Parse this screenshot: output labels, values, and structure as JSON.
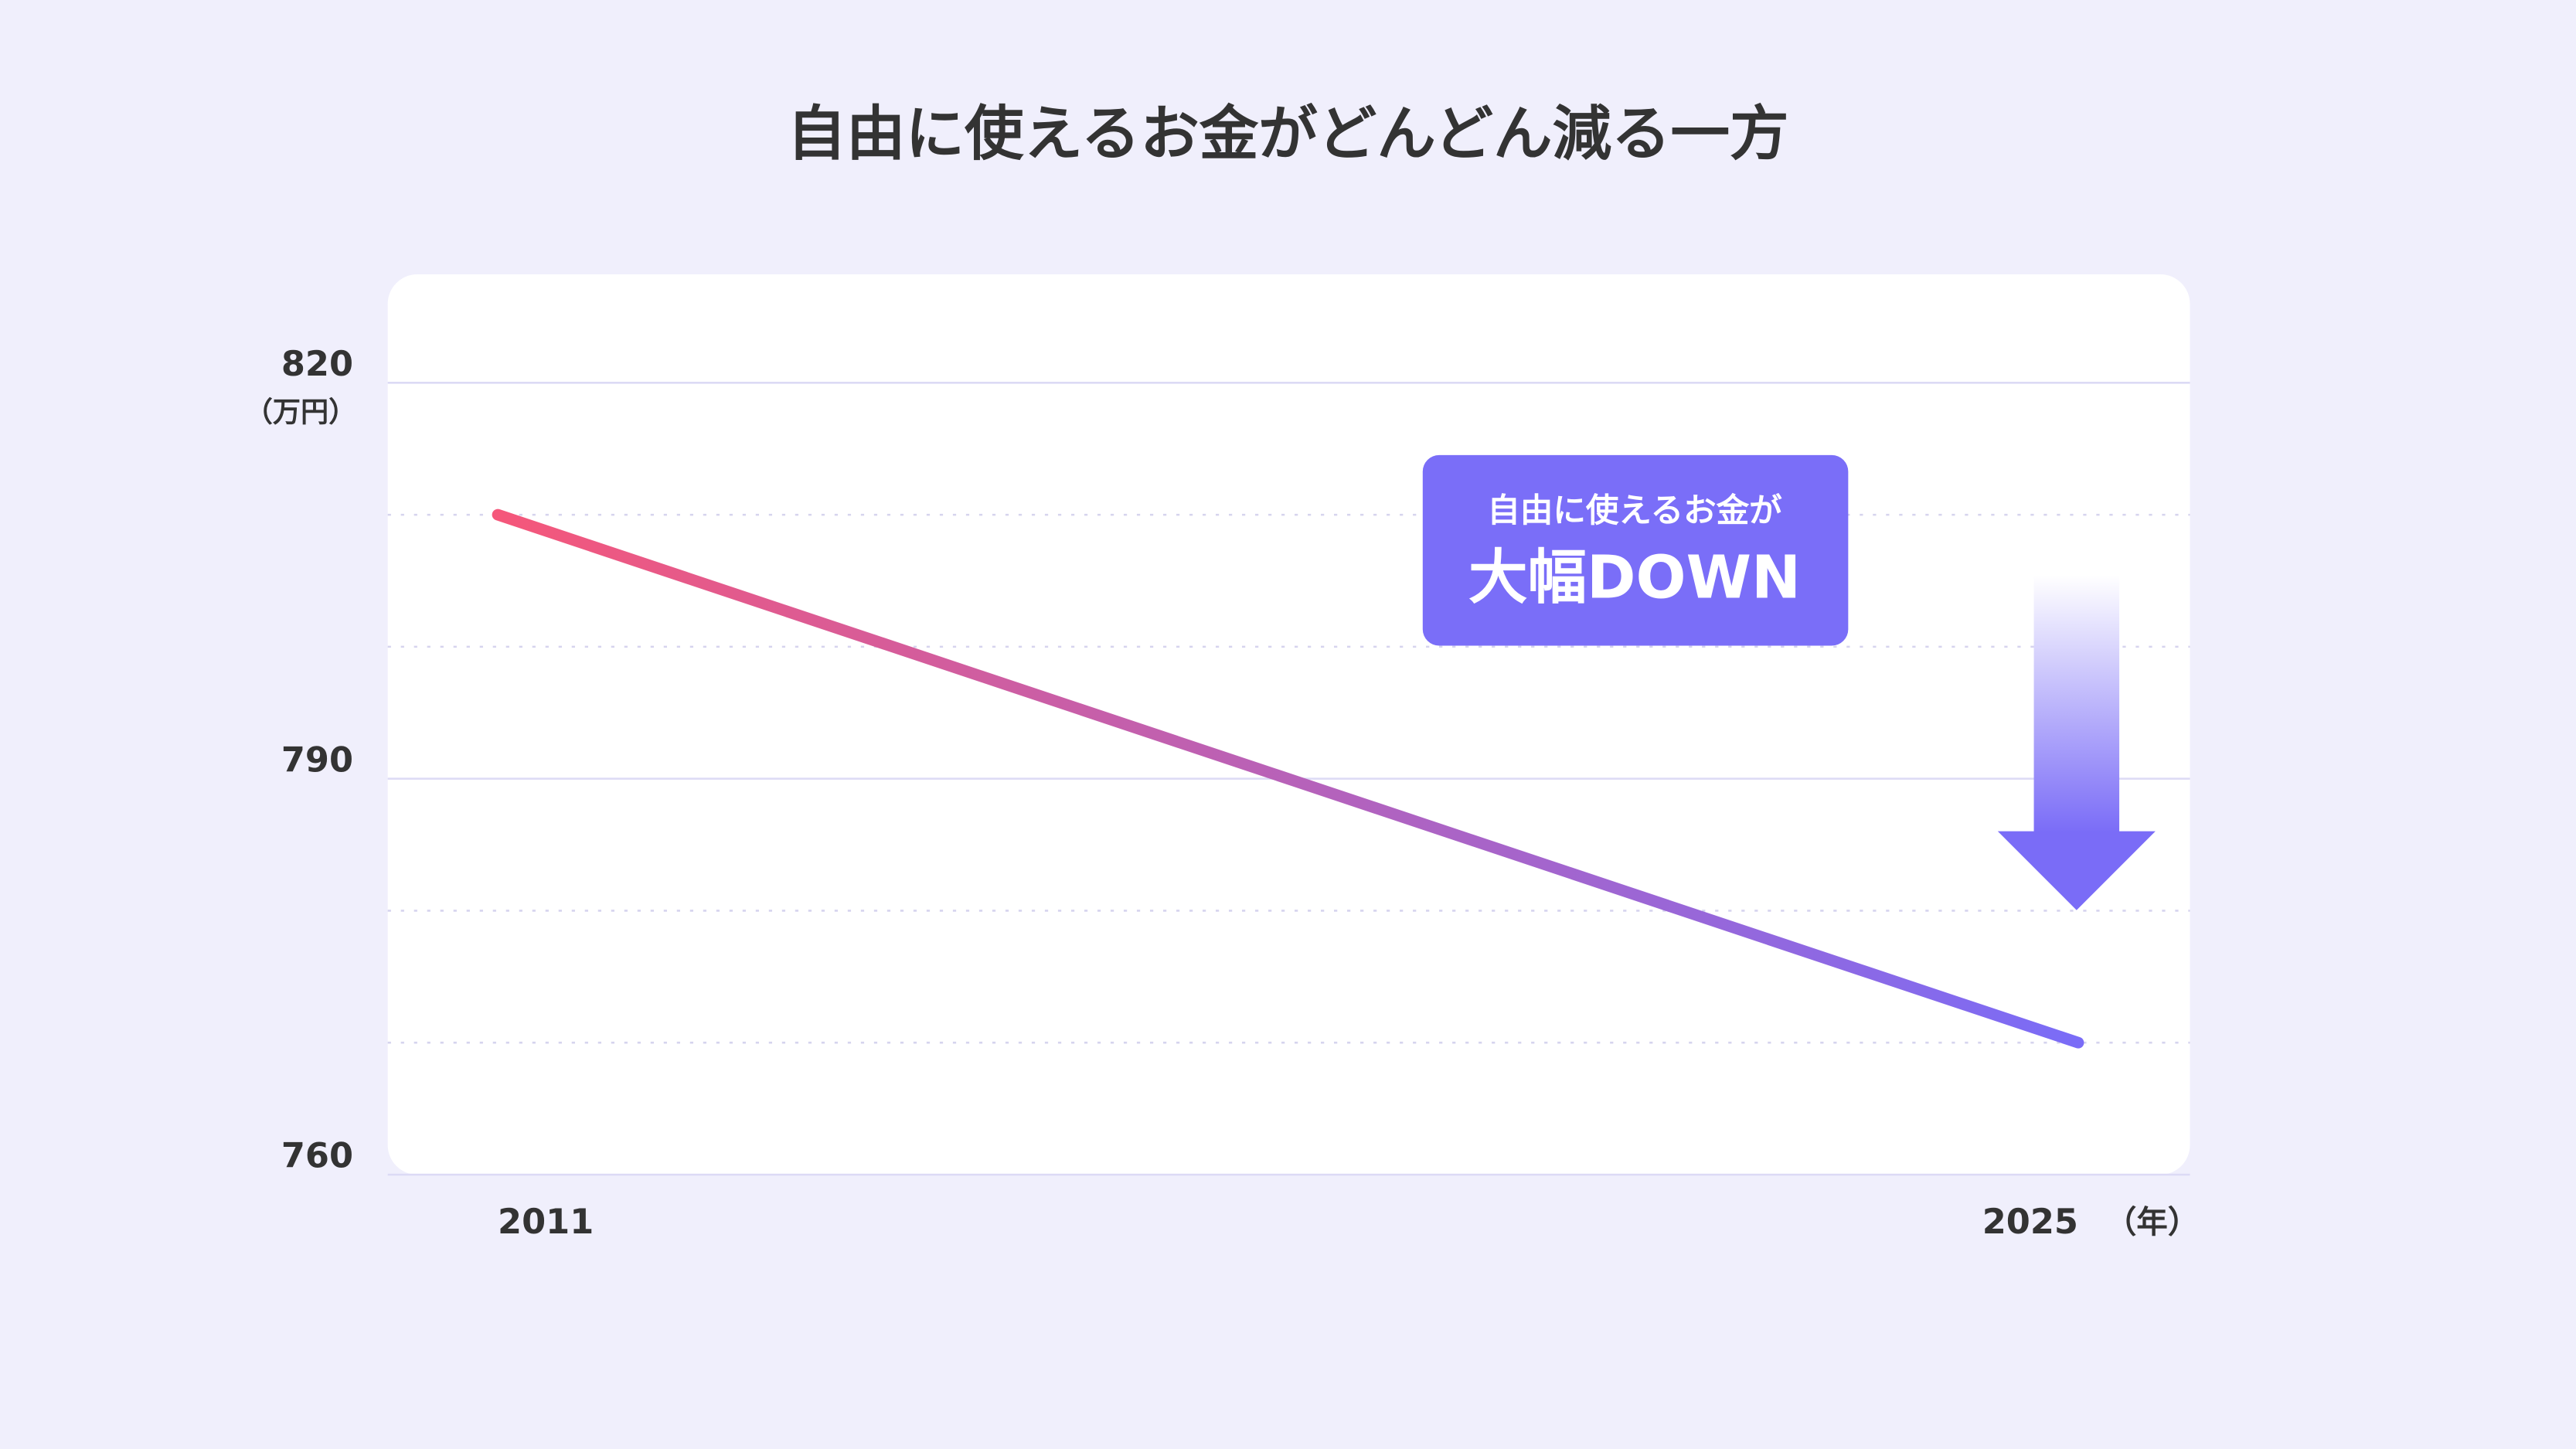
{
  "chart_data": {
    "type": "line",
    "title": "自由に使えるお金がどんどん減る一方",
    "y_unit": "（万円）",
    "x_unit": "（年）",
    "x": [
      2011,
      2025
    ],
    "xlim": [
      2011,
      2025
    ],
    "xticks": [
      2011,
      2025
    ],
    "ylim": [
      760,
      820
    ],
    "yticks": [
      760,
      790,
      820
    ],
    "minor_yticks": [
      770,
      780,
      800,
      810
    ],
    "grid": true,
    "series": [
      {
        "values": [
          810,
          770
        ],
        "colors": [
          "#f5577a",
          "#7a6cf7"
        ]
      }
    ],
    "annotation": {
      "line1": "自由に使えるお金が",
      "line2": "大幅DOWN",
      "color": "#7a6ef8"
    }
  }
}
